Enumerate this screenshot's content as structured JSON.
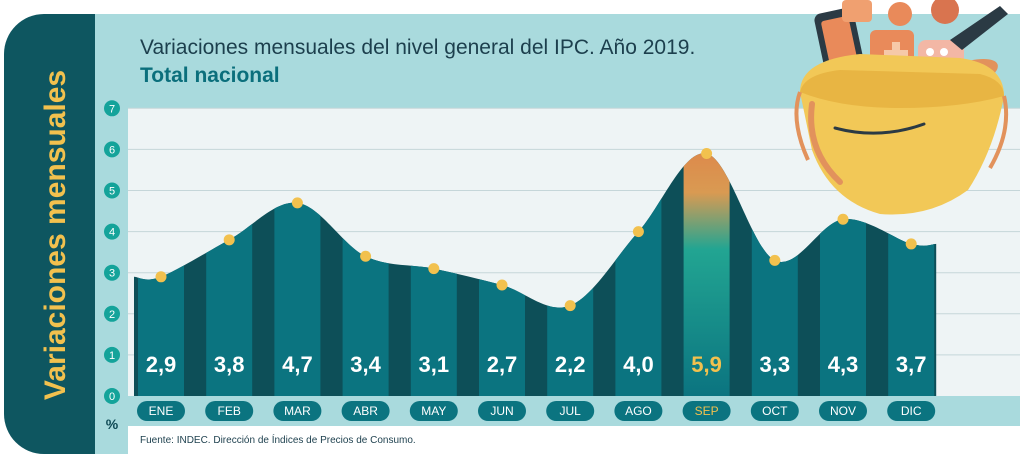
{
  "chart_data": {
    "type": "bar",
    "title": "Variaciones mensuales del nivel general del IPC. Año 2019.",
    "subtitle": "Total nacional",
    "ylabel": "Variaciones mensuales",
    "unit": "%",
    "categories": [
      "ENE",
      "FEB",
      "MAR",
      "ABR",
      "MAY",
      "JUN",
      "JUL",
      "AGO",
      "SEP",
      "OCT",
      "NOV",
      "DIC"
    ],
    "values": [
      2.9,
      3.8,
      4.7,
      3.4,
      3.1,
      2.7,
      2.2,
      4.0,
      5.9,
      3.3,
      4.3,
      3.7
    ],
    "value_labels": [
      "2,9",
      "3,8",
      "4,7",
      "3,4",
      "3,1",
      "2,7",
      "2,2",
      "4,0",
      "5,9",
      "3,3",
      "4,3",
      "3,7"
    ],
    "highlight": "SEP",
    "ylim": [
      0,
      7
    ],
    "yticks": [
      "0",
      "1",
      "2",
      "3",
      "4",
      "5",
      "6",
      "7"
    ],
    "grid": true,
    "source": "Fuente: INDEC. Dirección de Índices de Precios de Consumo."
  },
  "colors": {
    "bar": "#0b7480",
    "bar_dark": "#0d4f58",
    "panel": "#a9dadd",
    "frame": "#0e5660",
    "accent": "#f2c14e",
    "highlight_top": "#e8894a",
    "plot_bg": "#eef4f5"
  },
  "decoration": {
    "basket": "shopping-basket-illustration"
  }
}
